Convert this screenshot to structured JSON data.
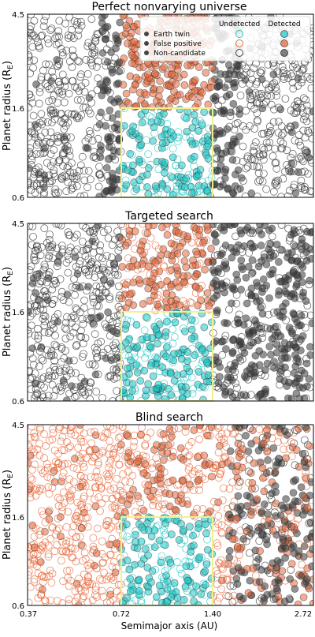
{
  "chart_data": [
    {
      "type": "scatter",
      "title": "Perfect nonvarying universe",
      "xlabel": "",
      "ylabel": "Planet radius (R",
      "ylabel_sub": "E",
      "x_scale": "log",
      "y_scale": "log",
      "xlim": [
        0.37,
        2.72
      ],
      "ylim": [
        0.6,
        4.5
      ],
      "yticks": [
        "0.6",
        "1.6",
        "4.5"
      ],
      "xticks": [],
      "earth_twin_box": {
        "x": [
          0.72,
          1.4
        ],
        "y": [
          0.6,
          1.6
        ]
      },
      "legend": {
        "position": "top-right",
        "headers": [
          "Undetected",
          "Detected"
        ],
        "rows": [
          "Earth twin",
          "False positive",
          "Non-candidate"
        ]
      }
    },
    {
      "type": "scatter",
      "title": "Targeted search",
      "xlabel": "",
      "ylabel": "Planet radius (R",
      "ylabel_sub": "E",
      "x_scale": "log",
      "y_scale": "log",
      "xlim": [
        0.37,
        2.72
      ],
      "ylim": [
        0.6,
        4.5
      ],
      "yticks": [
        "0.6",
        "1.6",
        "4.5"
      ],
      "xticks": [],
      "earth_twin_box": {
        "x": [
          0.72,
          1.4
        ],
        "y": [
          0.6,
          1.6
        ]
      }
    },
    {
      "type": "scatter",
      "title": "Blind search",
      "xlabel": "Semimajor axis (AU)",
      "ylabel": "Planet radius (R",
      "ylabel_sub": "E",
      "x_scale": "log",
      "y_scale": "log",
      "xlim": [
        0.37,
        2.72
      ],
      "ylim": [
        0.6,
        4.5
      ],
      "yticks": [
        "0.6",
        "1.6",
        "4.5"
      ],
      "xticks": [
        "0.37",
        "0.72",
        "1.40",
        "2.72"
      ],
      "earth_twin_box": {
        "x": [
          0.72,
          1.4
        ],
        "y": [
          0.6,
          1.6
        ]
      }
    }
  ],
  "colors": {
    "earth_twin": "#1ec8c8",
    "false_positive": "#e8683a",
    "non_candidate": "#3a3a3a",
    "box": "#f2f08a"
  }
}
